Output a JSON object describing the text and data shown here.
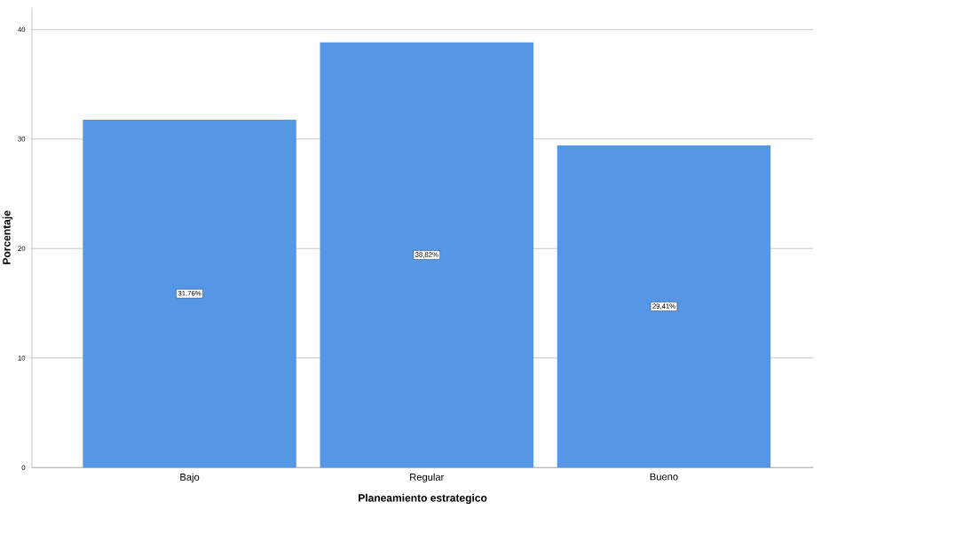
{
  "chart_data": {
    "type": "bar",
    "xlabel": "Planeamiento estrategico",
    "ylabel": "Porcentaje",
    "categories": [
      "Bajo",
      "Regular",
      "Bueno"
    ],
    "values": [
      31.76,
      38.82,
      29.41
    ],
    "value_labels": [
      "31,76%",
      "38,82%",
      "29,41%"
    ],
    "color": "#5596e6",
    "ylim": [
      0,
      42
    ],
    "yticks": [
      0,
      10,
      20,
      30,
      40
    ],
    "grid": "y"
  }
}
